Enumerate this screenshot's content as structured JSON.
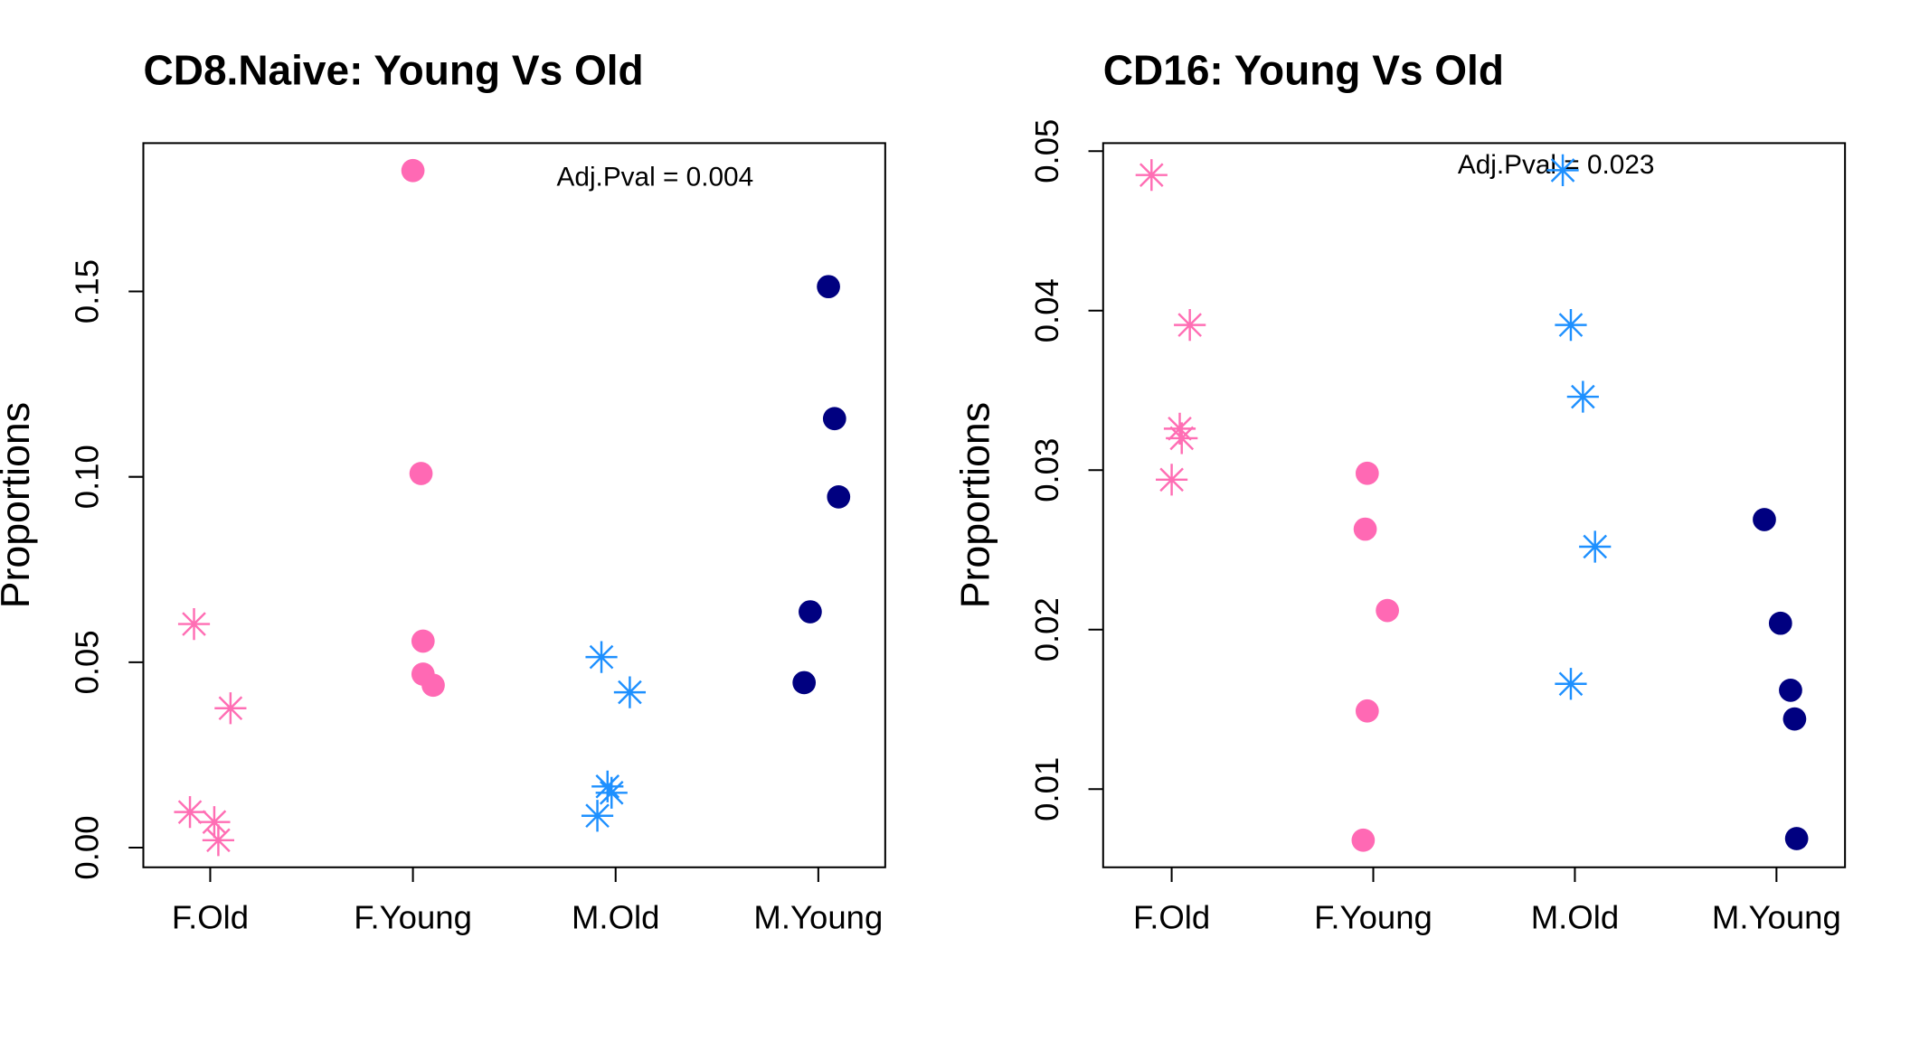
{
  "chart_data": [
    {
      "type": "scatter",
      "title": "CD8.Naive: Young Vs Old",
      "ylabel": "Proportions",
      "annotation": "Adj.Pval = 0.004",
      "xlim": [
        0.67,
        4.33
      ],
      "ylim": [
        -0.0053,
        0.19
      ],
      "xticks": [
        {
          "value": 1,
          "label": "F.Old"
        },
        {
          "value": 2,
          "label": "F.Young"
        },
        {
          "value": 3,
          "label": "M.Old"
        },
        {
          "value": 4,
          "label": "M.Young"
        }
      ],
      "yticks": [
        {
          "value": 0,
          "label": "0.00"
        },
        0.05,
        {
          "value": 0.1,
          "label": "0.10"
        },
        0.15
      ],
      "series": [
        {
          "color": "#ff6eb4",
          "marker": "star",
          "x": [
            0.92,
            1.1,
            0.9,
            1.02,
            1.04
          ],
          "values": [
            0.0603,
            0.0376,
            0.0096,
            0.0069,
            0.002
          ]
        },
        {
          "color": "#ff69b4",
          "marker": "circle",
          "x": [
            2.0,
            2.04,
            2.05,
            2.05,
            2.1
          ],
          "values": [
            0.1826,
            0.1009,
            0.0557,
            0.0468,
            0.0438
          ]
        },
        {
          "color": "#1e90ff",
          "marker": "star",
          "x": [
            2.93,
            3.07,
            2.96,
            2.98,
            2.91
          ],
          "values": [
            0.0514,
            0.0419,
            0.0165,
            0.0148,
            0.0086
          ]
        },
        {
          "color": "#000080",
          "marker": "circle",
          "x": [
            4.05,
            4.08,
            4.1,
            3.96,
            3.93
          ],
          "values": [
            0.1513,
            0.1157,
            0.0946,
            0.0636,
            0.0445
          ]
        }
      ]
    },
    {
      "type": "scatter",
      "title": "CD16: Young Vs Old",
      "ylabel": "Proportions",
      "annotation": "Adj.Pval = 0.023",
      "xlim": [
        0.66,
        4.34
      ],
      "ylim": [
        0.0051,
        0.0505
      ],
      "xticks": [
        {
          "value": 1,
          "label": "F.Old"
        },
        {
          "value": 2,
          "label": "F.Young"
        },
        {
          "value": 3,
          "label": "M.Old"
        },
        {
          "value": 4,
          "label": "M.Young"
        }
      ],
      "yticks": [
        0.01,
        0.02,
        0.03,
        0.04,
        0.05
      ],
      "series": [
        {
          "color": "#ff6eb4",
          "marker": "star",
          "x": [
            0.9,
            1.09,
            1.04,
            1.05,
            1.0
          ],
          "values": [
            0.0485,
            0.0391,
            0.0326,
            0.032,
            0.0294
          ]
        },
        {
          "color": "#ff69b4",
          "marker": "circle",
          "x": [
            1.97,
            1.96,
            2.07,
            1.97,
            1.95
          ],
          "values": [
            0.0298,
            0.0263,
            0.0212,
            0.0149,
            0.0068
          ]
        },
        {
          "color": "#1e90ff",
          "marker": "star",
          "x": [
            2.94,
            2.98,
            3.04,
            3.1,
            2.98
          ],
          "values": [
            0.0488,
            0.0391,
            0.0346,
            0.0252,
            0.0166
          ]
        },
        {
          "color": "#000080",
          "marker": "circle",
          "x": [
            3.94,
            4.02,
            4.07,
            4.09,
            4.1
          ],
          "values": [
            0.0269,
            0.0204,
            0.0162,
            0.0144,
            0.0069
          ]
        }
      ]
    }
  ]
}
